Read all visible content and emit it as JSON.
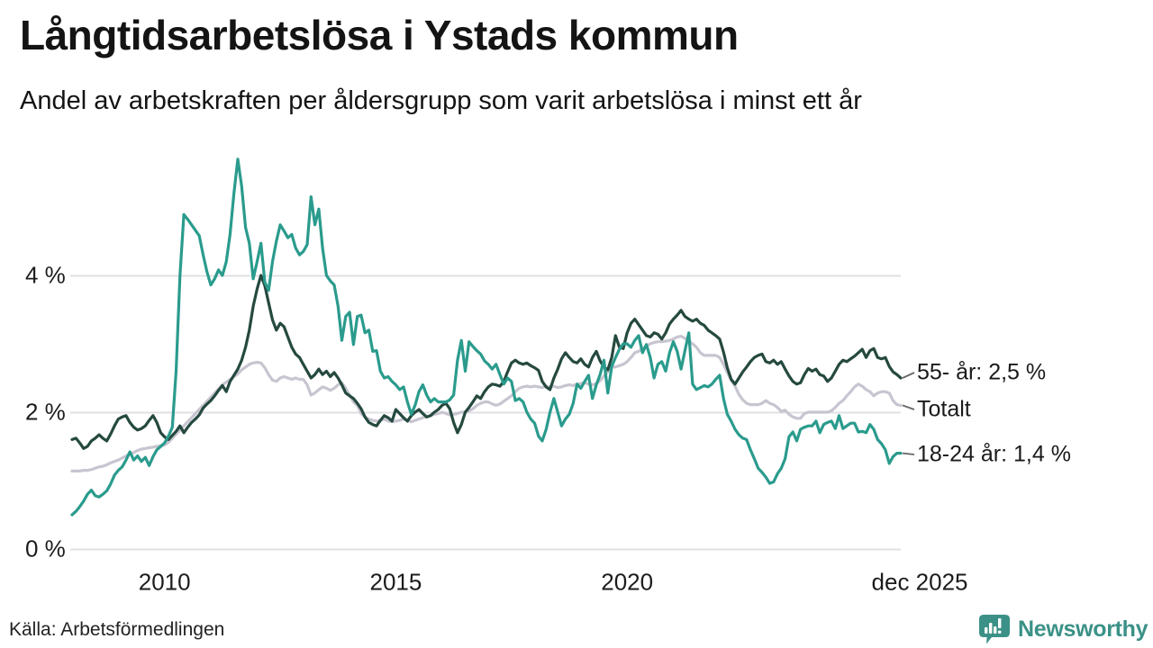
{
  "chart_data": {
    "type": "line",
    "title": "Långtidsarbetslösa i Ystads kommun",
    "subtitle": "Andel av arbetskraften per åldersgrupp som varit arbetslösa i minst ett år",
    "x_start": "2008-01",
    "x_end": "2025-12",
    "frequency": "monthly",
    "unit": "%",
    "ylim": [
      0,
      5.9
    ],
    "grid": "horizontal",
    "legend_position": "right-end-labels",
    "grid_color": "#e0e0e5",
    "y_ticks": [
      {
        "label": "0 %",
        "value": 0
      },
      {
        "label": "2 %",
        "value": 2
      },
      {
        "label": "4 %",
        "value": 4
      }
    ],
    "x_ticks": [
      {
        "label": "2010",
        "year": 2010
      },
      {
        "label": "2015",
        "year": 2015
      },
      {
        "label": "2020",
        "year": 2020
      },
      {
        "label": "dec 2025",
        "year": 2025.917
      }
    ],
    "series": [
      {
        "name": "55- år",
        "end_label": "55- år: 2,5 %",
        "last_value": 2.5,
        "color": "#25493f",
        "values": [
          1.6,
          1.62,
          1.55,
          1.47,
          1.5,
          1.58,
          1.62,
          1.67,
          1.62,
          1.58,
          1.68,
          1.8,
          1.9,
          1.93,
          1.95,
          1.85,
          1.78,
          1.74,
          1.76,
          1.8,
          1.88,
          1.95,
          1.85,
          1.7,
          1.64,
          1.6,
          1.66,
          1.72,
          1.8,
          1.7,
          1.78,
          1.85,
          1.9,
          1.96,
          2.06,
          2.12,
          2.17,
          2.24,
          2.32,
          2.39,
          2.3,
          2.45,
          2.54,
          2.63,
          2.76,
          2.95,
          3.2,
          3.55,
          3.8,
          4.0,
          3.85,
          3.6,
          3.35,
          3.2,
          3.3,
          3.25,
          3.1,
          2.95,
          2.85,
          2.8,
          2.7,
          2.6,
          2.5,
          2.55,
          2.63,
          2.55,
          2.6,
          2.52,
          2.58,
          2.5,
          2.4,
          2.28,
          2.24,
          2.2,
          2.13,
          2.05,
          1.93,
          1.85,
          1.82,
          1.8,
          1.88,
          1.95,
          1.92,
          1.87,
          2.04,
          1.98,
          1.92,
          1.87,
          1.95,
          2.0,
          2.04,
          1.98,
          1.93,
          1.95,
          2.0,
          2.04,
          2.1,
          2.13,
          2.05,
          1.85,
          1.7,
          1.82,
          2.0,
          2.07,
          2.15,
          2.24,
          2.2,
          2.3,
          2.37,
          2.41,
          2.4,
          2.38,
          2.45,
          2.59,
          2.72,
          2.76,
          2.72,
          2.7,
          2.72,
          2.68,
          2.65,
          2.61,
          2.45,
          2.37,
          2.33,
          2.5,
          2.63,
          2.78,
          2.87,
          2.8,
          2.74,
          2.72,
          2.78,
          2.7,
          2.66,
          2.8,
          2.89,
          2.75,
          2.66,
          2.62,
          2.8,
          3.12,
          2.95,
          2.93,
          3.16,
          3.3,
          3.36,
          3.28,
          3.2,
          3.12,
          3.1,
          3.16,
          3.14,
          3.07,
          3.16,
          3.29,
          3.36,
          3.42,
          3.49,
          3.4,
          3.36,
          3.33,
          3.36,
          3.3,
          3.27,
          3.2,
          3.16,
          3.12,
          3.07,
          2.88,
          2.65,
          2.48,
          2.41,
          2.5,
          2.59,
          2.66,
          2.74,
          2.8,
          2.83,
          2.85,
          2.74,
          2.72,
          2.76,
          2.7,
          2.74,
          2.63,
          2.53,
          2.45,
          2.41,
          2.43,
          2.55,
          2.64,
          2.6,
          2.63,
          2.55,
          2.53,
          2.45,
          2.5,
          2.6,
          2.7,
          2.76,
          2.74,
          2.78,
          2.82,
          2.87,
          2.92,
          2.8,
          2.9,
          2.93,
          2.8,
          2.78,
          2.8,
          2.67,
          2.59,
          2.55,
          2.5
        ]
      },
      {
        "name": "Totalt",
        "end_label": "Totalt",
        "last_value": 2.1,
        "color": "#c7c5d0",
        "values": [
          1.14,
          1.14,
          1.14,
          1.15,
          1.15,
          1.16,
          1.18,
          1.2,
          1.21,
          1.23,
          1.26,
          1.28,
          1.3,
          1.33,
          1.36,
          1.39,
          1.41,
          1.44,
          1.46,
          1.47,
          1.48,
          1.49,
          1.5,
          1.51,
          1.52,
          1.56,
          1.62,
          1.68,
          1.74,
          1.8,
          1.86,
          1.92,
          1.98,
          2.04,
          2.1,
          2.16,
          2.22,
          2.28,
          2.34,
          2.4,
          2.44,
          2.48,
          2.52,
          2.56,
          2.62,
          2.66,
          2.7,
          2.72,
          2.73,
          2.72,
          2.65,
          2.55,
          2.47,
          2.45,
          2.5,
          2.52,
          2.5,
          2.48,
          2.5,
          2.48,
          2.48,
          2.4,
          2.25,
          2.28,
          2.33,
          2.37,
          2.35,
          2.32,
          2.35,
          2.4,
          2.43,
          2.35,
          2.25,
          2.15,
          2.1,
          1.98,
          1.93,
          1.9,
          1.88,
          1.87,
          1.88,
          1.9,
          1.87,
          1.86,
          1.87,
          1.88,
          1.9,
          1.88,
          1.86,
          1.88,
          1.9,
          1.92,
          1.93,
          1.95,
          1.97,
          1.98,
          2.0,
          1.98,
          1.96,
          1.97,
          1.98,
          2.0,
          2.0,
          2.02,
          2.05,
          2.1,
          2.13,
          2.15,
          2.15,
          2.12,
          2.1,
          2.12,
          2.16,
          2.2,
          2.24,
          2.3,
          2.35,
          2.37,
          2.38,
          2.37,
          2.38,
          2.37,
          2.36,
          2.38,
          2.37,
          2.38,
          2.36,
          2.37,
          2.39,
          2.4,
          2.39,
          2.41,
          2.42,
          2.43,
          2.41,
          2.4,
          2.42,
          2.46,
          2.53,
          2.59,
          2.66,
          2.66,
          2.68,
          2.7,
          2.74,
          2.8,
          2.87,
          2.89,
          2.93,
          2.97,
          3.0,
          3.02,
          3.03,
          3.03,
          3.04,
          3.05,
          3.07,
          3.1,
          3.11,
          3.08,
          3.04,
          3.0,
          2.95,
          2.87,
          2.83,
          2.83,
          2.83,
          2.83,
          2.8,
          2.7,
          2.58,
          2.47,
          2.38,
          2.26,
          2.18,
          2.13,
          2.11,
          2.11,
          2.11,
          2.13,
          2.17,
          2.13,
          2.11,
          2.07,
          2.01,
          2.03,
          1.97,
          1.93,
          1.91,
          1.91,
          1.98,
          2.0,
          2.0,
          2.0,
          2.0,
          2.0,
          2.0,
          2.02,
          2.07,
          2.13,
          2.17,
          2.24,
          2.3,
          2.37,
          2.41,
          2.38,
          2.33,
          2.3,
          2.24,
          2.28,
          2.3,
          2.3,
          2.28,
          2.17,
          2.11,
          2.1
        ]
      },
      {
        "name": "18-24 år",
        "end_label": "18-24 år: 1,4 %",
        "last_value": 1.4,
        "color": "#2a9b8d",
        "values": [
          0.5,
          0.55,
          0.62,
          0.7,
          0.8,
          0.86,
          0.78,
          0.76,
          0.8,
          0.85,
          0.95,
          1.08,
          1.15,
          1.2,
          1.3,
          1.42,
          1.3,
          1.36,
          1.28,
          1.34,
          1.22,
          1.35,
          1.45,
          1.5,
          1.55,
          1.65,
          1.78,
          2.6,
          4.0,
          4.89,
          4.82,
          4.74,
          4.66,
          4.58,
          4.3,
          4.05,
          3.86,
          3.95,
          4.08,
          4.0,
          4.2,
          4.6,
          5.2,
          5.7,
          5.3,
          4.7,
          4.47,
          3.95,
          4.2,
          4.47,
          3.9,
          3.78,
          4.2,
          4.5,
          4.74,
          4.65,
          4.55,
          4.6,
          4.4,
          4.3,
          4.35,
          4.45,
          5.15,
          4.74,
          4.97,
          4.4,
          4.0,
          3.92,
          3.86,
          3.55,
          3.05,
          3.4,
          3.46,
          2.99,
          3.4,
          3.42,
          3.16,
          3.2,
          2.89,
          2.9,
          2.6,
          2.5,
          2.52,
          2.45,
          2.4,
          2.33,
          2.37,
          2.15,
          1.97,
          2.1,
          2.3,
          2.4,
          2.25,
          2.15,
          2.2,
          2.15,
          2.15,
          2.15,
          2.18,
          2.25,
          2.76,
          3.05,
          2.6,
          3.03,
          2.96,
          2.9,
          2.85,
          2.75,
          2.7,
          2.63,
          2.7,
          2.55,
          2.41,
          2.5,
          2.45,
          2.17,
          2.2,
          2.15,
          2.0,
          1.9,
          1.84,
          1.65,
          1.58,
          1.75,
          2.0,
          2.2,
          2.0,
          1.8,
          1.9,
          1.97,
          2.13,
          2.41,
          2.35,
          2.45,
          2.54,
          2.2,
          2.4,
          2.55,
          2.76,
          2.28,
          2.67,
          2.8,
          2.92,
          3.0,
          3.0,
          2.95,
          3.05,
          3.12,
          2.87,
          2.99,
          2.8,
          2.5,
          2.7,
          2.74,
          2.6,
          2.87,
          3.03,
          2.89,
          2.63,
          2.9,
          3.16,
          2.41,
          2.33,
          2.36,
          2.39,
          2.37,
          2.41,
          2.48,
          2.54,
          2.2,
          1.97,
          1.87,
          1.75,
          1.67,
          1.62,
          1.6,
          1.45,
          1.32,
          1.18,
          1.12,
          1.05,
          0.96,
          0.98,
          1.1,
          1.18,
          1.32,
          1.64,
          1.71,
          1.58,
          1.75,
          1.78,
          1.8,
          1.8,
          1.87,
          1.7,
          1.82,
          1.85,
          1.87,
          1.76,
          1.95,
          1.76,
          1.8,
          1.84,
          1.84,
          1.71,
          1.72,
          1.7,
          1.82,
          1.75,
          1.6,
          1.54,
          1.45,
          1.25,
          1.35,
          1.4,
          1.4
        ]
      }
    ]
  },
  "footer": {
    "source": "Källa: Arbetsförmedlingen",
    "brand": "Newsworthy"
  }
}
